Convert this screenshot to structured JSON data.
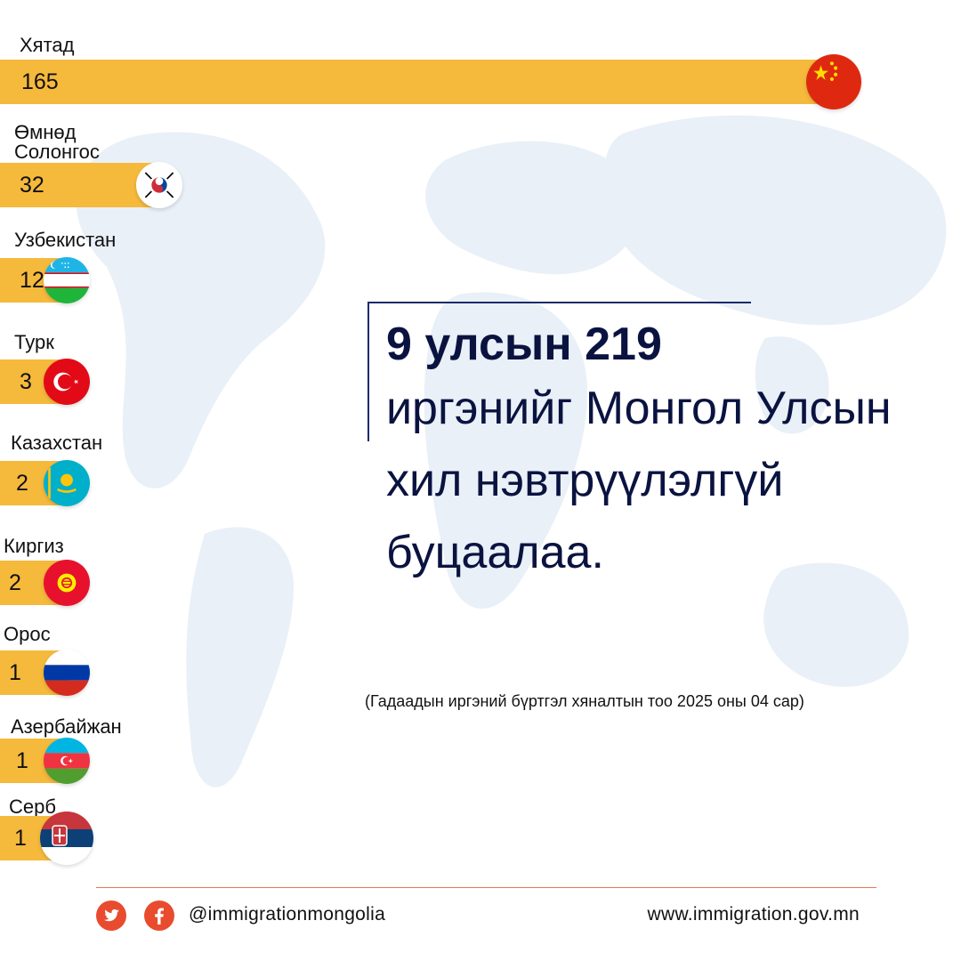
{
  "chart_data": {
    "type": "bar",
    "orientation": "horizontal",
    "categories": [
      "Хятад",
      "Өмнөд Солонгос",
      "Узбекистан",
      "Турк",
      "Казахстан",
      "Киргиз",
      "Орос",
      "Азербайжан",
      "Серб"
    ],
    "values": [
      165,
      32,
      12,
      3,
      2,
      2,
      1,
      1,
      1
    ],
    "flags": [
      "china-flag-icon",
      "south-korea-flag-icon",
      "uzbekistan-flag-icon",
      "turkey-flag-icon",
      "kazakhstan-flag-icon",
      "kyrgyzstan-flag-icon",
      "russia-flag-icon",
      "azerbaijan-flag-icon",
      "serbia-flag-icon"
    ],
    "bar_color": "#f5b93c"
  },
  "headline": {
    "bold": "9 улсын 219",
    "rest": "иргэнийг Монгол Улсын хил нэвтрүүлэлгүй буцаалаа."
  },
  "source_note": "(Гадаадын иргэний бүртгэл хяналтын тоо 2025 оны 04 сар)",
  "footer": {
    "social_icons": [
      "twitter-icon",
      "facebook-icon"
    ],
    "handle": "@immigrationmongolia",
    "website": "www.immigration.gov.mn"
  },
  "colors": {
    "text_dark": "#0a1340",
    "accent": "#e84b2e"
  }
}
